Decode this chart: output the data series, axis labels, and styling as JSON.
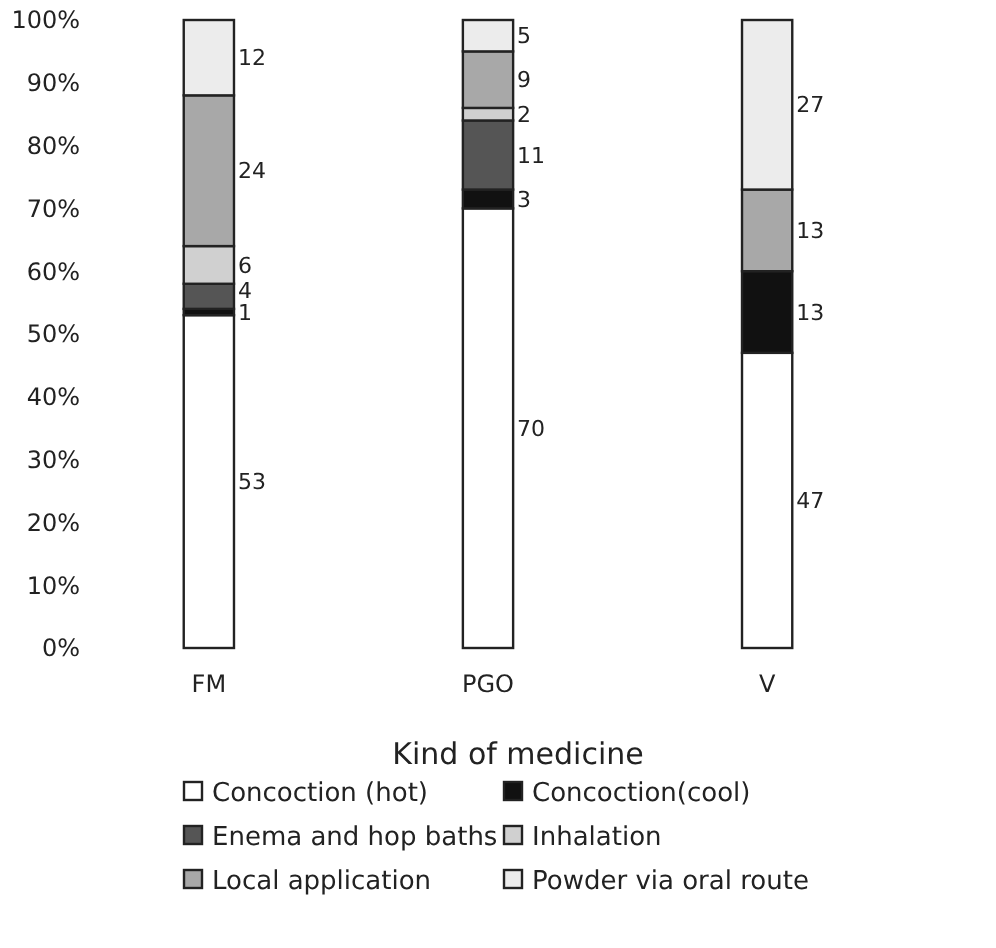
{
  "chart_data": {
    "type": "bar",
    "stacked": true,
    "xlabel": "Kind of medicine",
    "categories": [
      "FM",
      "PGO",
      "V"
    ],
    "ylim": [
      0,
      100
    ],
    "yticks": [
      {
        "value": 0,
        "label": "0%"
      },
      {
        "value": 10,
        "label": "10%"
      },
      {
        "value": 20,
        "label": "20%"
      },
      {
        "value": 30,
        "label": "30%"
      },
      {
        "value": 40,
        "label": "40%"
      },
      {
        "value": 50,
        "label": "50%"
      },
      {
        "value": 60,
        "label": "60%"
      },
      {
        "value": 70,
        "label": "70%"
      },
      {
        "value": 80,
        "label": "80%"
      },
      {
        "value": 90,
        "label": "90%"
      },
      {
        "value": 100,
        "label": "100%"
      }
    ],
    "grid": false,
    "legend": "bottom",
    "series": [
      {
        "name": "Concoction  (hot)",
        "color": "#ffffff",
        "values": [
          53,
          70,
          47
        ],
        "value_labels": [
          "53",
          "70",
          "47"
        ]
      },
      {
        "name": "Concoction(cool)",
        "color": "#111111",
        "values": [
          1,
          3,
          13
        ],
        "value_labels": [
          "1",
          "3",
          "13"
        ]
      },
      {
        "name": "Enema and hop baths",
        "color": "#555555",
        "values": [
          4,
          11,
          0
        ],
        "value_labels": [
          "4",
          "11",
          null
        ]
      },
      {
        "name": "Inhalation",
        "color": "#d0d0d0",
        "values": [
          6,
          2,
          0
        ],
        "value_labels": [
          "6",
          "2",
          null
        ]
      },
      {
        "name": "Local application",
        "color": "#a8a8a8",
        "values": [
          24,
          9,
          13
        ],
        "value_labels": [
          "24",
          "9",
          "13"
        ]
      },
      {
        "name": "Powder via oral route",
        "color": "#ececec",
        "values": [
          12,
          5,
          27
        ],
        "value_labels": [
          "12",
          "5",
          "27"
        ]
      }
    ]
  }
}
